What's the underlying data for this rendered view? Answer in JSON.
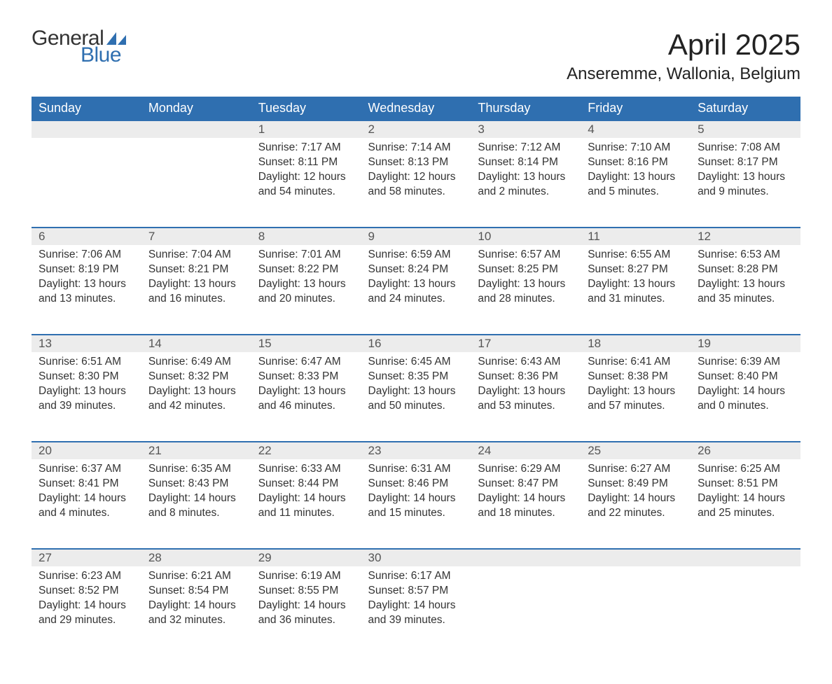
{
  "brand": {
    "general": "General",
    "blue": "Blue",
    "icon_color": "#2f6fb0"
  },
  "header": {
    "month_title": "April 2025",
    "location": "Anseremme, Wallonia, Belgium"
  },
  "style": {
    "header_bg": "#2f6fb0",
    "header_text": "#ffffff",
    "daynum_bg": "#ececec",
    "daynum_text": "#555555",
    "row_border": "#2f6fb0",
    "body_text": "#333333",
    "page_bg": "#ffffff",
    "th_fontsize": 18,
    "daynum_fontsize": 17,
    "body_fontsize": 15.5,
    "title_fontsize": 42,
    "location_fontsize": 24
  },
  "columns": [
    "Sunday",
    "Monday",
    "Tuesday",
    "Wednesday",
    "Thursday",
    "Friday",
    "Saturday"
  ],
  "weeks": [
    [
      null,
      null,
      {
        "n": "1",
        "sunrise": "7:17 AM",
        "sunset": "8:11 PM",
        "daylight": "12 hours and 54 minutes."
      },
      {
        "n": "2",
        "sunrise": "7:14 AM",
        "sunset": "8:13 PM",
        "daylight": "12 hours and 58 minutes."
      },
      {
        "n": "3",
        "sunrise": "7:12 AM",
        "sunset": "8:14 PM",
        "daylight": "13 hours and 2 minutes."
      },
      {
        "n": "4",
        "sunrise": "7:10 AM",
        "sunset": "8:16 PM",
        "daylight": "13 hours and 5 minutes."
      },
      {
        "n": "5",
        "sunrise": "7:08 AM",
        "sunset": "8:17 PM",
        "daylight": "13 hours and 9 minutes."
      }
    ],
    [
      {
        "n": "6",
        "sunrise": "7:06 AM",
        "sunset": "8:19 PM",
        "daylight": "13 hours and 13 minutes."
      },
      {
        "n": "7",
        "sunrise": "7:04 AM",
        "sunset": "8:21 PM",
        "daylight": "13 hours and 16 minutes."
      },
      {
        "n": "8",
        "sunrise": "7:01 AM",
        "sunset": "8:22 PM",
        "daylight": "13 hours and 20 minutes."
      },
      {
        "n": "9",
        "sunrise": "6:59 AM",
        "sunset": "8:24 PM",
        "daylight": "13 hours and 24 minutes."
      },
      {
        "n": "10",
        "sunrise": "6:57 AM",
        "sunset": "8:25 PM",
        "daylight": "13 hours and 28 minutes."
      },
      {
        "n": "11",
        "sunrise": "6:55 AM",
        "sunset": "8:27 PM",
        "daylight": "13 hours and 31 minutes."
      },
      {
        "n": "12",
        "sunrise": "6:53 AM",
        "sunset": "8:28 PM",
        "daylight": "13 hours and 35 minutes."
      }
    ],
    [
      {
        "n": "13",
        "sunrise": "6:51 AM",
        "sunset": "8:30 PM",
        "daylight": "13 hours and 39 minutes."
      },
      {
        "n": "14",
        "sunrise": "6:49 AM",
        "sunset": "8:32 PM",
        "daylight": "13 hours and 42 minutes."
      },
      {
        "n": "15",
        "sunrise": "6:47 AM",
        "sunset": "8:33 PM",
        "daylight": "13 hours and 46 minutes."
      },
      {
        "n": "16",
        "sunrise": "6:45 AM",
        "sunset": "8:35 PM",
        "daylight": "13 hours and 50 minutes."
      },
      {
        "n": "17",
        "sunrise": "6:43 AM",
        "sunset": "8:36 PM",
        "daylight": "13 hours and 53 minutes."
      },
      {
        "n": "18",
        "sunrise": "6:41 AM",
        "sunset": "8:38 PM",
        "daylight": "13 hours and 57 minutes."
      },
      {
        "n": "19",
        "sunrise": "6:39 AM",
        "sunset": "8:40 PM",
        "daylight": "14 hours and 0 minutes."
      }
    ],
    [
      {
        "n": "20",
        "sunrise": "6:37 AM",
        "sunset": "8:41 PM",
        "daylight": "14 hours and 4 minutes."
      },
      {
        "n": "21",
        "sunrise": "6:35 AM",
        "sunset": "8:43 PM",
        "daylight": "14 hours and 8 minutes."
      },
      {
        "n": "22",
        "sunrise": "6:33 AM",
        "sunset": "8:44 PM",
        "daylight": "14 hours and 11 minutes."
      },
      {
        "n": "23",
        "sunrise": "6:31 AM",
        "sunset": "8:46 PM",
        "daylight": "14 hours and 15 minutes."
      },
      {
        "n": "24",
        "sunrise": "6:29 AM",
        "sunset": "8:47 PM",
        "daylight": "14 hours and 18 minutes."
      },
      {
        "n": "25",
        "sunrise": "6:27 AM",
        "sunset": "8:49 PM",
        "daylight": "14 hours and 22 minutes."
      },
      {
        "n": "26",
        "sunrise": "6:25 AM",
        "sunset": "8:51 PM",
        "daylight": "14 hours and 25 minutes."
      }
    ],
    [
      {
        "n": "27",
        "sunrise": "6:23 AM",
        "sunset": "8:52 PM",
        "daylight": "14 hours and 29 minutes."
      },
      {
        "n": "28",
        "sunrise": "6:21 AM",
        "sunset": "8:54 PM",
        "daylight": "14 hours and 32 minutes."
      },
      {
        "n": "29",
        "sunrise": "6:19 AM",
        "sunset": "8:55 PM",
        "daylight": "14 hours and 36 minutes."
      },
      {
        "n": "30",
        "sunrise": "6:17 AM",
        "sunset": "8:57 PM",
        "daylight": "14 hours and 39 minutes."
      },
      null,
      null,
      null
    ]
  ],
  "labels": {
    "sunrise": "Sunrise:",
    "sunset": "Sunset:",
    "daylight": "Daylight:"
  }
}
